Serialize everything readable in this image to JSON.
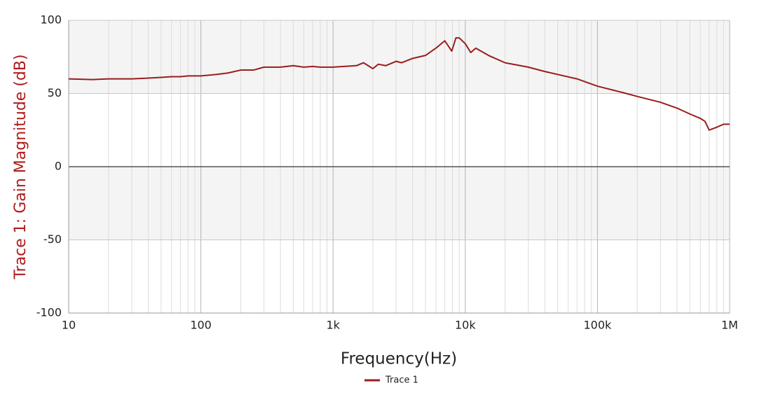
{
  "chart_data": {
    "type": "line",
    "y_label": "Trace 1: Gain Magnitude (dB)",
    "x_label": "Frequency(Hz)",
    "x": [
      10,
      15,
      20,
      30,
      40,
      50,
      60,
      70,
      80,
      100,
      130,
      160,
      200,
      250,
      300,
      400,
      500,
      600,
      700,
      800,
      1000,
      1200,
      1500,
      1700,
      2000,
      2200,
      2500,
      3000,
      3300,
      4000,
      5000,
      6000,
      7000,
      7900,
      8500,
      9000,
      10000,
      11000,
      12000,
      15000,
      20000,
      30000,
      40000,
      50000,
      70000,
      100000,
      150000,
      200000,
      300000,
      400000,
      500000,
      600000,
      650000,
      700000,
      800000,
      900000,
      1000000
    ],
    "series": [
      {
        "name": "Trace 1",
        "color": "#9b1c1c",
        "values": [
          60,
          59.5,
          60,
          60,
          60.5,
          61,
          61.5,
          61.5,
          62,
          62,
          63,
          64,
          66,
          66,
          68,
          68,
          69,
          68,
          68.5,
          68,
          68,
          68.5,
          69,
          71,
          67,
          70,
          69,
          72,
          71,
          74,
          76,
          81,
          86,
          79,
          88,
          88,
          84,
          78,
          81,
          76,
          71,
          68,
          65,
          63,
          60,
          55,
          51,
          48,
          44,
          40,
          36,
          33,
          31,
          25,
          27,
          29,
          29
        ]
      }
    ],
    "xlim": [
      10,
      1000000
    ],
    "log_x": true,
    "xticks": [
      10,
      100,
      {
        "value": 1000,
        "label": "1k"
      },
      {
        "value": 10000,
        "label": "10k"
      },
      {
        "value": 100000,
        "label": "100k"
      },
      {
        "value": 1000000,
        "label": "1M"
      }
    ],
    "ylim": [
      -100,
      100
    ],
    "yticks": [
      -100,
      -50,
      0,
      50,
      100
    ],
    "grid": true,
    "minor_grid": true,
    "legend": "bottom",
    "label_color": "#b01c1c"
  }
}
